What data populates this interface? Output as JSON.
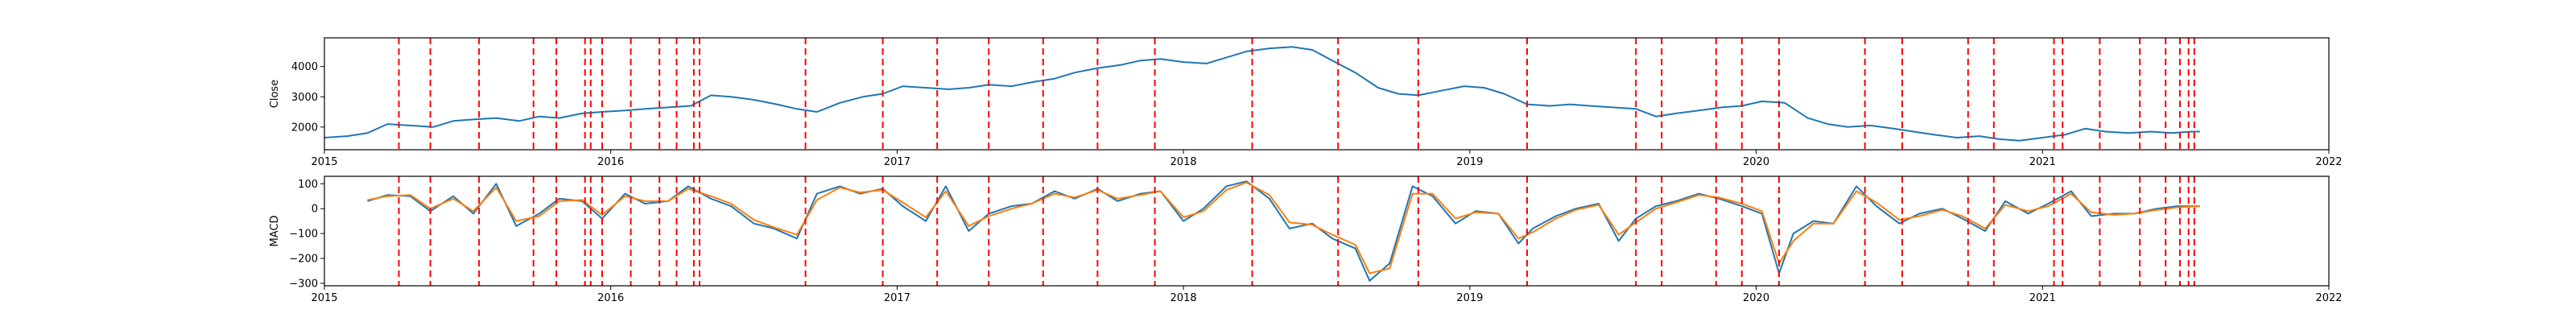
{
  "colors": {
    "close": "#1f77b4",
    "macd": "#1f77b4",
    "signal": "#ff7f0e",
    "events": "#ff0000",
    "axes": "#000000"
  },
  "chart_data": [
    {
      "type": "line",
      "ylabel": "Close",
      "xlabel": "",
      "xlim": [
        2015.0,
        2022.0
      ],
      "ylim": [
        1250,
        4950
      ],
      "xticks": [
        2015,
        2016,
        2017,
        2018,
        2019,
        2020,
        2021,
        2022
      ],
      "xtick_labels": [
        "2015",
        "2016",
        "2017",
        "2018",
        "2019",
        "2020",
        "2021",
        "2022"
      ],
      "yticks": [
        2000,
        3000,
        4000
      ],
      "ytick_labels": [
        "2000",
        "3000",
        "4000"
      ],
      "event_lines": [
        2015.26,
        2015.37,
        2015.54,
        2015.73,
        2015.81,
        2015.91,
        2015.93,
        2015.97,
        2016.07,
        2016.17,
        2016.23,
        2016.29,
        2016.31,
        2016.68,
        2016.95,
        2017.14,
        2017.32,
        2017.51,
        2017.7,
        2017.9,
        2018.24,
        2018.54,
        2018.82,
        2019.2,
        2019.58,
        2019.67,
        2019.86,
        2019.95,
        2020.08,
        2020.38,
        2020.51,
        2020.74,
        2020.83,
        2021.04,
        2021.07,
        2021.2,
        2021.34,
        2021.43,
        2021.48,
        2021.51,
        2021.53
      ],
      "series": [
        {
          "x": [
            2015.0,
            2015.08,
            2015.15,
            2015.22,
            2015.3,
            2015.38,
            2015.45,
            2015.52,
            2015.6,
            2015.68,
            2015.75,
            2015.82,
            2015.9,
            2015.97,
            2016.05,
            2016.12,
            2016.2,
            2016.28,
            2016.35,
            2016.42,
            2016.5,
            2016.58,
            2016.65,
            2016.72,
            2016.8,
            2016.88,
            2016.95,
            2017.02,
            2017.1,
            2017.18,
            2017.25,
            2017.32,
            2017.4,
            2017.48,
            2017.55,
            2017.62,
            2017.7,
            2017.78,
            2017.85,
            2017.92,
            2018.0,
            2018.08,
            2018.15,
            2018.22,
            2018.3,
            2018.38,
            2018.45,
            2018.52,
            2018.6,
            2018.68,
            2018.75,
            2018.82,
            2018.9,
            2018.98,
            2019.05,
            2019.12,
            2019.2,
            2019.28,
            2019.35,
            2019.42,
            2019.5,
            2019.58,
            2019.65,
            2019.72,
            2019.8,
            2019.88,
            2019.95,
            2020.02,
            2020.1,
            2020.18,
            2020.25,
            2020.32,
            2020.4,
            2020.48,
            2020.55,
            2020.62,
            2020.7,
            2020.78,
            2020.85,
            2020.92,
            2021.0,
            2021.08,
            2021.15,
            2021.22,
            2021.3,
            2021.38,
            2021.45,
            2021.52,
            2021.55
          ],
          "y": [
            1650,
            1700,
            1800,
            2100,
            2050,
            2000,
            2200,
            2250,
            2300,
            2200,
            2350,
            2300,
            2450,
            2500,
            2550,
            2600,
            2650,
            2700,
            3050,
            3000,
            2900,
            2750,
            2600,
            2500,
            2800,
            3000,
            3100,
            3350,
            3300,
            3250,
            3300,
            3400,
            3350,
            3500,
            3600,
            3800,
            3950,
            4050,
            4200,
            4250,
            4150,
            4100,
            4300,
            4500,
            4600,
            4650,
            4550,
            4200,
            3800,
            3300,
            3100,
            3050,
            3200,
            3350,
            3300,
            3100,
            2750,
            2700,
            2750,
            2700,
            2650,
            2600,
            2350,
            2450,
            2550,
            2650,
            2700,
            2850,
            2800,
            2300,
            2100,
            2000,
            2050,
            1950,
            1850,
            1750,
            1650,
            1700,
            1600,
            1550,
            1650,
            1750,
            1950,
            1850,
            1800,
            1850,
            1800,
            1850,
            1850
          ]
        }
      ]
    },
    {
      "type": "line",
      "ylabel": "MACD",
      "xlabel": "",
      "xlim": [
        2015.0,
        2022.0
      ],
      "ylim": [
        -310,
        130
      ],
      "xticks": [
        2015,
        2016,
        2017,
        2018,
        2019,
        2020,
        2021,
        2022
      ],
      "xtick_labels": [
        "2015",
        "2016",
        "2017",
        "2018",
        "2019",
        "2020",
        "2021",
        "2022"
      ],
      "yticks": [
        -300,
        -200,
        -100,
        0,
        100
      ],
      "ytick_labels": [
        "−300",
        "−200",
        "−100",
        "0",
        "100"
      ],
      "event_lines": [
        2015.26,
        2015.37,
        2015.54,
        2015.73,
        2015.81,
        2015.91,
        2015.93,
        2015.97,
        2016.07,
        2016.17,
        2016.23,
        2016.29,
        2016.31,
        2016.68,
        2016.95,
        2017.14,
        2017.32,
        2017.51,
        2017.7,
        2017.9,
        2018.24,
        2018.54,
        2018.82,
        2019.2,
        2019.58,
        2019.67,
        2019.86,
        2019.95,
        2020.08,
        2020.38,
        2020.51,
        2020.74,
        2020.83,
        2021.04,
        2021.07,
        2021.2,
        2021.34,
        2021.43,
        2021.48,
        2021.51,
        2021.53
      ],
      "series": [
        {
          "x": [
            2015.15,
            2015.22,
            2015.3,
            2015.37,
            2015.45,
            2015.52,
            2015.6,
            2015.67,
            2015.75,
            2015.82,
            2015.9,
            2015.97,
            2016.05,
            2016.12,
            2016.2,
            2016.27,
            2016.35,
            2016.42,
            2016.5,
            2016.57,
            2016.65,
            2016.72,
            2016.8,
            2016.87,
            2016.95,
            2017.02,
            2017.1,
            2017.17,
            2017.25,
            2017.32,
            2017.4,
            2017.47,
            2017.55,
            2017.62,
            2017.7,
            2017.77,
            2017.85,
            2017.92,
            2018.0,
            2018.07,
            2018.15,
            2018.22,
            2018.3,
            2018.37,
            2018.45,
            2018.52,
            2018.6,
            2018.65,
            2018.72,
            2018.8,
            2018.87,
            2018.95,
            2019.02,
            2019.1,
            2019.17,
            2019.22,
            2019.3,
            2019.37,
            2019.45,
            2019.52,
            2019.58,
            2019.65,
            2019.72,
            2019.8,
            2019.87,
            2019.95,
            2020.02,
            2020.08,
            2020.13,
            2020.2,
            2020.27,
            2020.35,
            2020.42,
            2020.5,
            2020.57,
            2020.65,
            2020.72,
            2020.8,
            2020.87,
            2020.95,
            2021.02,
            2021.1,
            2021.17,
            2021.25,
            2021.32,
            2021.4,
            2021.47,
            2021.55
          ],
          "y": [
            30,
            55,
            50,
            -10,
            50,
            -20,
            100,
            -70,
            -20,
            40,
            30,
            -40,
            60,
            20,
            30,
            90,
            40,
            10,
            -60,
            -80,
            -120,
            60,
            90,
            60,
            80,
            10,
            -50,
            90,
            -90,
            -20,
            10,
            20,
            70,
            40,
            80,
            30,
            60,
            70,
            -50,
            0,
            90,
            110,
            40,
            -80,
            -60,
            -120,
            -160,
            -290,
            -220,
            90,
            50,
            -60,
            -10,
            -20,
            -140,
            -80,
            -30,
            0,
            20,
            -130,
            -40,
            10,
            30,
            60,
            40,
            10,
            -20,
            -260,
            -100,
            -50,
            -60,
            90,
            10,
            -60,
            -20,
            0,
            -40,
            -90,
            30,
            -20,
            20,
            70,
            -30,
            -20,
            -20,
            0,
            10,
            10
          ]
        },
        {
          "x": [
            2015.15,
            2015.22,
            2015.3,
            2015.37,
            2015.45,
            2015.52,
            2015.6,
            2015.67,
            2015.75,
            2015.82,
            2015.9,
            2015.97,
            2016.05,
            2016.12,
            2016.2,
            2016.27,
            2016.35,
            2016.42,
            2016.5,
            2016.57,
            2016.65,
            2016.72,
            2016.8,
            2016.87,
            2016.95,
            2017.02,
            2017.1,
            2017.17,
            2017.25,
            2017.32,
            2017.4,
            2017.47,
            2017.55,
            2017.62,
            2017.7,
            2017.77,
            2017.85,
            2017.92,
            2018.0,
            2018.07,
            2018.15,
            2018.22,
            2018.3,
            2018.37,
            2018.45,
            2018.52,
            2018.6,
            2018.65,
            2018.72,
            2018.8,
            2018.87,
            2018.95,
            2019.02,
            2019.1,
            2019.17,
            2019.22,
            2019.3,
            2019.37,
            2019.45,
            2019.52,
            2019.58,
            2019.65,
            2019.72,
            2019.8,
            2019.87,
            2019.95,
            2020.02,
            2020.08,
            2020.13,
            2020.2,
            2020.27,
            2020.35,
            2020.42,
            2020.5,
            2020.57,
            2020.65,
            2020.72,
            2020.8,
            2020.87,
            2020.95,
            2021.02,
            2021.1,
            2021.17,
            2021.25,
            2021.32,
            2021.4,
            2021.47,
            2021.55
          ],
          "y": [
            35,
            50,
            55,
            0,
            40,
            -10,
            85,
            -50,
            -30,
            30,
            35,
            -25,
            50,
            30,
            30,
            80,
            50,
            20,
            -45,
            -75,
            -105,
            35,
            85,
            65,
            75,
            25,
            -35,
            70,
            -70,
            -30,
            0,
            20,
            60,
            45,
            75,
            40,
            55,
            70,
            -35,
            -10,
            75,
            105,
            55,
            -55,
            -65,
            -105,
            -145,
            -260,
            -240,
            60,
            60,
            -40,
            -15,
            -20,
            -120,
            -95,
            -40,
            -5,
            15,
            -105,
            -55,
            0,
            25,
            55,
            45,
            20,
            -10,
            -220,
            -130,
            -60,
            -60,
            70,
            25,
            -45,
            -30,
            -5,
            -30,
            -80,
            15,
            -10,
            10,
            60,
            -15,
            -25,
            -20,
            -5,
            5,
            10
          ]
        }
      ]
    }
  ]
}
